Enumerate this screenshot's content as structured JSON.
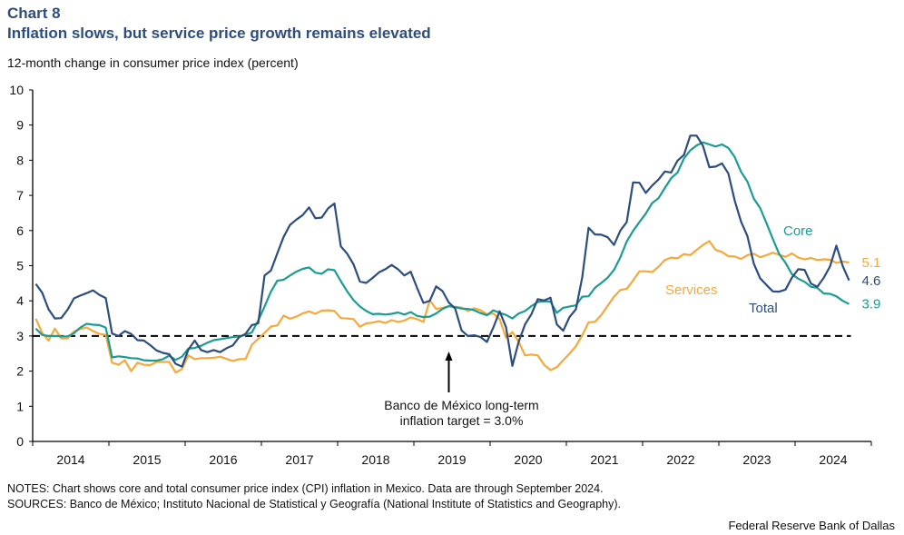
{
  "header": {
    "chart_label": "Chart 8",
    "title": "Inflation slows, but service price growth remains elevated",
    "units": "12-month change in consumer price index (percent)"
  },
  "footer": {
    "notes": "NOTES: Chart shows core and total consumer price index (CPI) inflation in Mexico. Data are through September 2024.",
    "sources": "SOURCES: Banco de México; Instituto Nacional de Statistical y Geografía (National Institute of Statistics and Geography).",
    "credit": "Federal Reserve Bank of Dallas"
  },
  "chart_data": {
    "type": "line",
    "title": "Inflation slows, but service price growth remains elevated",
    "xlabel": "",
    "ylabel": "12-month change in consumer price index (percent)",
    "ylim": [
      0,
      10
    ],
    "yticks": [
      "0",
      "1",
      "2",
      "3",
      "4",
      "5",
      "6",
      "7",
      "8",
      "9",
      "10"
    ],
    "xlim": [
      "2014-01",
      "2025-01"
    ],
    "xticks": [
      "2014",
      "2015",
      "2016",
      "2017",
      "2018",
      "2019",
      "2020",
      "2021",
      "2022",
      "2023",
      "2024"
    ],
    "grid": false,
    "frequency": "monthly",
    "start": "2014-01",
    "end": "2024-09",
    "reference_line": {
      "value": 3.0,
      "style": "dashed",
      "color": "#000000"
    },
    "annotation": {
      "line1": "Banco de México long-term",
      "line2": "inflation target = 3.0%",
      "arrow_date": "2019-06"
    },
    "series": [
      {
        "name": "Total",
        "color": "#2c4d7d",
        "end_label": "4.6",
        "values": [
          4.48,
          4.23,
          3.76,
          3.5,
          3.51,
          3.75,
          4.07,
          4.15,
          4.22,
          4.3,
          4.17,
          4.08,
          3.07,
          3.0,
          3.14,
          3.06,
          2.88,
          2.87,
          2.74,
          2.59,
          2.52,
          2.48,
          2.21,
          2.13,
          2.61,
          2.87,
          2.6,
          2.54,
          2.6,
          2.54,
          2.65,
          2.73,
          2.97,
          3.06,
          3.31,
          3.36,
          4.72,
          4.86,
          5.35,
          5.82,
          6.16,
          6.31,
          6.44,
          6.66,
          6.35,
          6.37,
          6.63,
          6.77,
          5.55,
          5.34,
          5.04,
          4.55,
          4.51,
          4.65,
          4.81,
          4.9,
          5.02,
          4.9,
          4.72,
          4.83,
          4.37,
          3.94,
          4.0,
          4.41,
          4.28,
          3.95,
          3.78,
          3.16,
          3.0,
          3.02,
          2.97,
          2.83,
          3.24,
          3.7,
          3.25,
          2.15,
          2.84,
          3.33,
          3.62,
          4.05,
          4.01,
          4.09,
          3.33,
          3.15,
          3.54,
          3.76,
          4.67,
          6.08,
          5.89,
          5.88,
          5.81,
          5.59,
          6.0,
          6.24,
          7.37,
          7.36,
          7.07,
          7.28,
          7.45,
          7.68,
          7.65,
          7.99,
          8.15,
          8.7,
          8.7,
          8.41,
          7.8,
          7.82,
          7.91,
          7.62,
          6.85,
          6.25,
          5.84,
          5.06,
          4.64,
          4.45,
          4.27,
          4.26,
          4.32,
          4.66,
          4.9,
          4.88,
          4.49,
          4.4,
          4.65,
          4.98,
          5.57,
          4.99,
          4.58
        ]
      },
      {
        "name": "Core",
        "color": "#1a9c93",
        "end_label": "3.9",
        "values": [
          3.21,
          3.03,
          3.0,
          3.0,
          2.99,
          2.99,
          3.08,
          3.24,
          3.35,
          3.32,
          3.31,
          3.24,
          2.39,
          2.42,
          2.4,
          2.37,
          2.36,
          2.31,
          2.3,
          2.3,
          2.34,
          2.44,
          2.32,
          2.41,
          2.64,
          2.66,
          2.72,
          2.81,
          2.88,
          2.91,
          2.94,
          2.97,
          2.99,
          3.03,
          3.1,
          3.44,
          3.84,
          4.26,
          4.57,
          4.6,
          4.72,
          4.83,
          4.91,
          4.95,
          4.8,
          4.77,
          4.9,
          4.87,
          4.56,
          4.27,
          4.02,
          3.84,
          3.71,
          3.62,
          3.63,
          3.61,
          3.63,
          3.67,
          3.61,
          3.68,
          3.57,
          3.54,
          3.55,
          3.64,
          3.77,
          3.85,
          3.82,
          3.78,
          3.77,
          3.73,
          3.65,
          3.59,
          3.73,
          3.66,
          3.6,
          3.5,
          3.64,
          3.71,
          3.85,
          3.97,
          3.99,
          3.98,
          3.66,
          3.8,
          3.84,
          3.87,
          4.12,
          4.13,
          4.37,
          4.51,
          4.66,
          4.88,
          5.24,
          5.69,
          5.99,
          6.24,
          6.48,
          6.78,
          6.92,
          7.21,
          7.49,
          7.65,
          8.05,
          8.28,
          8.42,
          8.51,
          8.45,
          8.39,
          8.45,
          8.35,
          8.09,
          7.67,
          7.39,
          6.91,
          6.64,
          6.21,
          5.76,
          5.33,
          5.08,
          4.76,
          4.63,
          4.54,
          4.4,
          4.37,
          4.21,
          4.2,
          4.13,
          4.0,
          3.91
        ]
      },
      {
        "name": "Services",
        "color": "#f5a93a",
        "end_label": "5.1",
        "values": [
          3.49,
          3.09,
          2.87,
          3.21,
          2.93,
          2.93,
          3.13,
          3.2,
          3.24,
          3.14,
          3.06,
          3.03,
          2.24,
          2.18,
          2.31,
          2.0,
          2.24,
          2.18,
          2.17,
          2.26,
          2.26,
          2.26,
          1.96,
          2.06,
          2.45,
          2.34,
          2.37,
          2.37,
          2.38,
          2.41,
          2.35,
          2.29,
          2.34,
          2.34,
          2.75,
          2.92,
          3.09,
          3.27,
          3.3,
          3.58,
          3.49,
          3.55,
          3.64,
          3.7,
          3.63,
          3.72,
          3.73,
          3.71,
          3.51,
          3.5,
          3.48,
          3.26,
          3.36,
          3.38,
          3.42,
          3.37,
          3.45,
          3.4,
          3.44,
          3.53,
          3.48,
          3.4,
          4.02,
          3.77,
          3.8,
          3.85,
          3.83,
          3.81,
          3.71,
          3.79,
          3.73,
          3.62,
          3.64,
          3.48,
          2.95,
          3.11,
          2.84,
          2.45,
          2.47,
          2.45,
          2.18,
          2.03,
          2.11,
          2.31,
          2.5,
          2.71,
          3.02,
          3.39,
          3.4,
          3.6,
          3.86,
          4.12,
          4.31,
          4.34,
          4.58,
          4.84,
          4.84,
          4.82,
          4.97,
          5.16,
          5.23,
          5.21,
          5.33,
          5.3,
          5.45,
          5.59,
          5.7,
          5.45,
          5.39,
          5.27,
          5.26,
          5.19,
          5.3,
          5.34,
          5.24,
          5.3,
          5.37,
          5.31,
          5.25,
          5.35,
          5.23,
          5.18,
          5.22,
          5.16,
          5.18,
          5.17,
          5.08,
          5.12,
          5.09
        ]
      }
    ],
    "series_labels": [
      {
        "name": "Core",
        "text": "Core"
      },
      {
        "name": "Services",
        "text": "Services"
      },
      {
        "name": "Total",
        "text": "Total"
      }
    ]
  }
}
